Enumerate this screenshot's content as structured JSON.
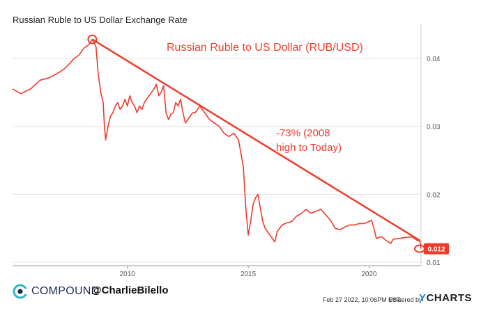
{
  "chart_data": {
    "type": "line",
    "title": "Russian Ruble to US Dollar Exchange Rate",
    "annotation_title": "Russian Ruble to US Dollar (RUB/USD)",
    "annotation_text": [
      "-73% (2008",
      "high to Today)"
    ],
    "last_value_label": "0.012",
    "x_ticks": [
      "2010",
      "2015",
      "2020"
    ],
    "y_ticks": [
      "0.01",
      "0.02",
      "0.03",
      "0.04"
    ],
    "xlim": [
      2005.25,
      2022.15
    ],
    "ylim": [
      0.0095,
      0.0445
    ],
    "y_axis": "right",
    "grid": "horizontal",
    "series": [
      {
        "color": "#ef3b2c",
        "x": [
          2005.25,
          2005.4,
          2005.6,
          2005.8,
          2006.0,
          2006.2,
          2006.4,
          2006.6,
          2006.8,
          2007.0,
          2007.2,
          2007.4,
          2007.6,
          2007.8,
          2008.0,
          2008.2,
          2008.4,
          2008.55,
          2008.7,
          2008.8,
          2008.9,
          2009.0,
          2009.05,
          2009.1,
          2009.2,
          2009.3,
          2009.4,
          2009.5,
          2009.6,
          2009.7,
          2009.8,
          2009.9,
          2010.0,
          2010.1,
          2010.2,
          2010.3,
          2010.4,
          2010.5,
          2010.6,
          2010.7,
          2010.8,
          2010.9,
          2011.0,
          2011.1,
          2011.2,
          2011.3,
          2011.4,
          2011.5,
          2011.6,
          2011.7,
          2011.8,
          2011.9,
          2012.0,
          2012.1,
          2012.2,
          2012.3,
          2012.4,
          2012.5,
          2012.6,
          2012.7,
          2012.8,
          2012.9,
          2013.0,
          2013.2,
          2013.4,
          2013.6,
          2013.8,
          2014.0,
          2014.2,
          2014.4,
          2014.6,
          2014.8,
          2014.9,
          2015.0,
          2015.1,
          2015.2,
          2015.3,
          2015.4,
          2015.5,
          2015.6,
          2015.7,
          2015.8,
          2016.0,
          2016.1,
          2016.2,
          2016.4,
          2016.6,
          2016.8,
          2017.0,
          2017.2,
          2017.4,
          2017.6,
          2017.8,
          2018.0,
          2018.2,
          2018.4,
          2018.6,
          2018.8,
          2019.0,
          2019.2,
          2019.4,
          2019.6,
          2019.8,
          2020.0,
          2020.1,
          2020.2,
          2020.3,
          2020.5,
          2020.7,
          2020.9,
          2021.0,
          2021.2,
          2021.4,
          2021.6,
          2021.8,
          2022.0,
          2022.1,
          2022.15
        ],
        "y": [
          0.0355,
          0.0352,
          0.0348,
          0.0352,
          0.0355,
          0.0362,
          0.0368,
          0.037,
          0.0372,
          0.0376,
          0.038,
          0.0385,
          0.0392,
          0.04,
          0.0405,
          0.0415,
          0.042,
          0.0428,
          0.0418,
          0.0375,
          0.035,
          0.0335,
          0.03,
          0.028,
          0.03,
          0.0315,
          0.032,
          0.033,
          0.0335,
          0.0325,
          0.033,
          0.034,
          0.033,
          0.0345,
          0.0335,
          0.033,
          0.032,
          0.033,
          0.0325,
          0.0335,
          0.034,
          0.0345,
          0.035,
          0.0355,
          0.0362,
          0.0345,
          0.035,
          0.036,
          0.032,
          0.031,
          0.0318,
          0.032,
          0.0335,
          0.033,
          0.034,
          0.032,
          0.0305,
          0.031,
          0.0315,
          0.032,
          0.032,
          0.0325,
          0.033,
          0.032,
          0.031,
          0.0305,
          0.03,
          0.029,
          0.0285,
          0.029,
          0.028,
          0.024,
          0.018,
          0.014,
          0.016,
          0.0185,
          0.0195,
          0.02,
          0.018,
          0.016,
          0.015,
          0.0145,
          0.0135,
          0.013,
          0.0145,
          0.0155,
          0.0158,
          0.016,
          0.0168,
          0.0172,
          0.0178,
          0.0172,
          0.0175,
          0.0178,
          0.017,
          0.0162,
          0.015,
          0.0148,
          0.0152,
          0.0155,
          0.0155,
          0.0157,
          0.0157,
          0.016,
          0.0162,
          0.015,
          0.0135,
          0.0138,
          0.0132,
          0.0128,
          0.0134,
          0.0135,
          0.0136,
          0.0137,
          0.0137,
          0.0132,
          0.0131,
          0.012
        ]
      }
    ],
    "trendline": {
      "x": [
        2008.55,
        2022.1
      ],
      "y": [
        0.0428,
        0.0132
      ]
    }
  },
  "footer": {
    "brand": "COMPOUND",
    "handle": "@CharlieBilello",
    "timestamp": "Feb 27 2022, 10:06PM EST.",
    "powered_by": "Powered by",
    "ycharts_y": "Y",
    "ycharts_rest": "CHARTS"
  }
}
